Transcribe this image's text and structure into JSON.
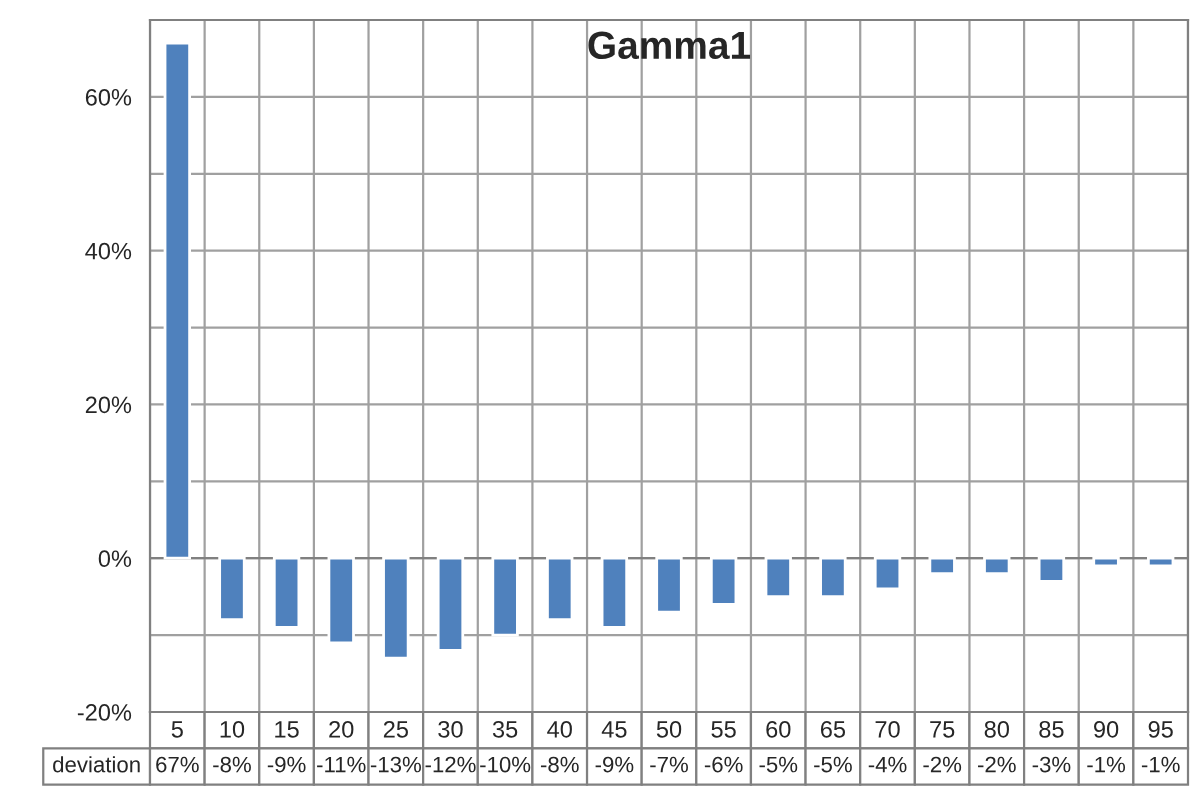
{
  "chart_data": {
    "type": "bar",
    "title": "Gamma1",
    "categories": [
      "5",
      "10",
      "15",
      "20",
      "25",
      "30",
      "35",
      "40",
      "45",
      "50",
      "55",
      "60",
      "65",
      "70",
      "75",
      "80",
      "85",
      "90",
      "95"
    ],
    "series": [
      {
        "name": "deviation",
        "color": "#4f81bd",
        "values": [
          67,
          -8,
          -9,
          -11,
          -13,
          -12,
          -10,
          -8,
          -9,
          -7,
          -6,
          -5,
          -5,
          -4,
          -2,
          -2,
          -3,
          -1,
          -1
        ],
        "value_labels": [
          "67%",
          "-8%",
          "-9%",
          "-11%",
          "-13%",
          "-12%",
          "-10%",
          "-8%",
          "-9%",
          "-7%",
          "-6%",
          "-5%",
          "-5%",
          "-4%",
          "-2%",
          "-2%",
          "-3%",
          "-1%",
          "-1%"
        ]
      }
    ],
    "ylim": [
      -20,
      70
    ],
    "yticks": [
      {
        "value": -20,
        "label": "-20%"
      },
      {
        "value": -10,
        "label": null
      },
      {
        "value": 0,
        "label": "0%"
      },
      {
        "value": 10,
        "label": null
      },
      {
        "value": 20,
        "label": "20%"
      },
      {
        "value": 30,
        "label": null
      },
      {
        "value": 40,
        "label": "40%"
      },
      {
        "value": 50,
        "label": null
      },
      {
        "value": 60,
        "label": "60%"
      },
      {
        "value": 70,
        "label": null
      }
    ],
    "grid": true
  }
}
